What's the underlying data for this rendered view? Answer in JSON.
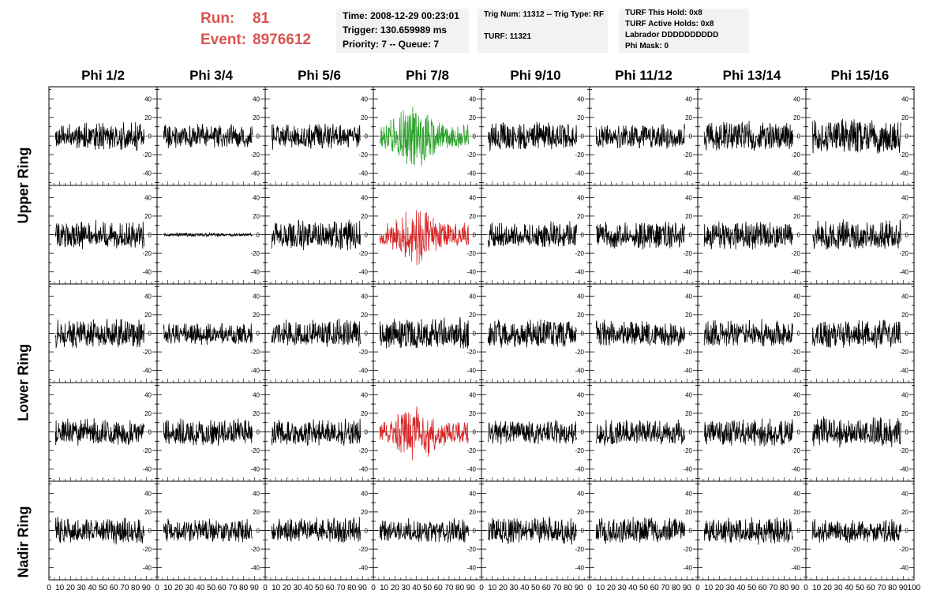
{
  "header": {
    "run_label": "Run:",
    "run_value": "81",
    "event_label": "Event:",
    "event_value": "8976612",
    "run_color": "#d9534f"
  },
  "info_boxes": [
    {
      "lines": [
        "Time: 2008-12-29 00:23:01",
        "Trigger: 130.659989 ms",
        "Priority: 7 -- Queue: 7"
      ]
    },
    {
      "lines": [
        "Trig Num: 11312 -- Trig Type: RF",
        "TURF: 11321"
      ]
    },
    {
      "lines": [
        "TURF This Hold: 0x8",
        "TURF Active Holds: 0x8",
        "Labrador DDDDDDDDDD",
        "Phi Mask: 0"
      ]
    }
  ],
  "chart_data": {
    "type": "line",
    "columns": [
      "Phi 1/2",
      "Phi 3/4",
      "Phi 5/6",
      "Phi 7/8",
      "Phi 9/10",
      "Phi 11/12",
      "Phi 13/14",
      "Phi 15/16"
    ],
    "rows": [
      "Upper Ring",
      "Upper Ring",
      "Lower Ring",
      "Lower Ring",
      "Nadir Ring"
    ],
    "ring_labels": [
      "Upper Ring",
      "Lower Ring",
      "Nadir Ring"
    ],
    "ylim": [
      -53,
      53
    ],
    "yticks": [
      -40,
      -20,
      0,
      20,
      40
    ],
    "xlim": [
      0,
      100
    ],
    "xticks": [
      0,
      10,
      20,
      30,
      40,
      50,
      60,
      70,
      80,
      90,
      100
    ],
    "xtick_labels": [
      "0",
      "10",
      "20",
      "30",
      "40",
      "50",
      "60",
      "70",
      "80",
      "90",
      "100"
    ],
    "samples_per_trace": 260,
    "trace_color": "#000000",
    "highlighted": [
      {
        "row": 0,
        "col": 3,
        "color": "#2ca02c",
        "shape": "burst"
      },
      {
        "row": 1,
        "col": 3,
        "color": "#d62728",
        "shape": "burst"
      },
      {
        "row": 3,
        "col": 3,
        "color": "#d62728",
        "shape": "burst"
      }
    ],
    "amplitudes": [
      [
        16,
        14,
        15,
        38,
        17,
        14,
        18,
        20
      ],
      [
        16,
        2,
        18,
        35,
        15,
        16,
        17,
        18
      ],
      [
        17,
        13,
        16,
        18,
        17,
        15,
        16,
        17
      ],
      [
        16,
        16,
        16,
        35,
        14,
        15,
        16,
        18
      ],
      [
        15,
        14,
        15,
        14,
        16,
        15,
        16,
        14
      ]
    ]
  }
}
